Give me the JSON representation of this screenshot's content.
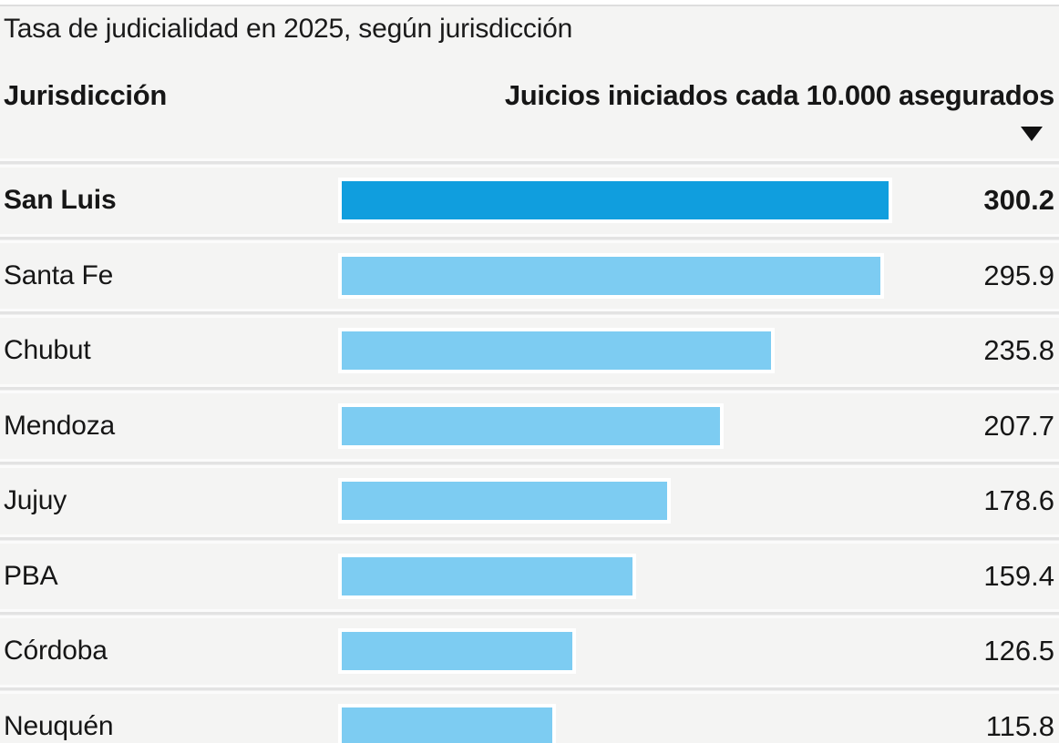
{
  "page": {
    "title": "Tasa de judicialidad en 2025, según jurisdicción",
    "background_color": "#f4f4f3"
  },
  "table": {
    "column1_header": "Jurisdicción",
    "column2_header": "Juicios iniciados cada 10.000 asegurados",
    "sort_icon": "triangle-down",
    "sort_direction": "descending"
  },
  "chart_data": {
    "type": "bar",
    "orientation": "horizontal",
    "title": "Tasa de judicialidad en 2025, según jurisdicción",
    "categories": [
      "San Luis",
      "Santa Fe",
      "Chubut",
      "Mendoza",
      "Jujuy",
      "PBA",
      "Córdoba",
      "Neuquén"
    ],
    "values": [
      300.2,
      295.9,
      235.8,
      207.7,
      178.6,
      159.4,
      126.5,
      115.8
    ],
    "value_labels": [
      "300.2",
      "295.9",
      "235.8",
      "207.7",
      "178.6",
      "159.4",
      "126.5",
      "115.8"
    ],
    "xlim": [
      0,
      300.2
    ],
    "sort": "descending",
    "highlight_index": 0,
    "colors": {
      "highlight_bar": "#109ede",
      "default_bar": "#7dccf2",
      "bar_outline": "#ffffff",
      "text": "#161616"
    },
    "legend": "none",
    "grid": "off"
  }
}
